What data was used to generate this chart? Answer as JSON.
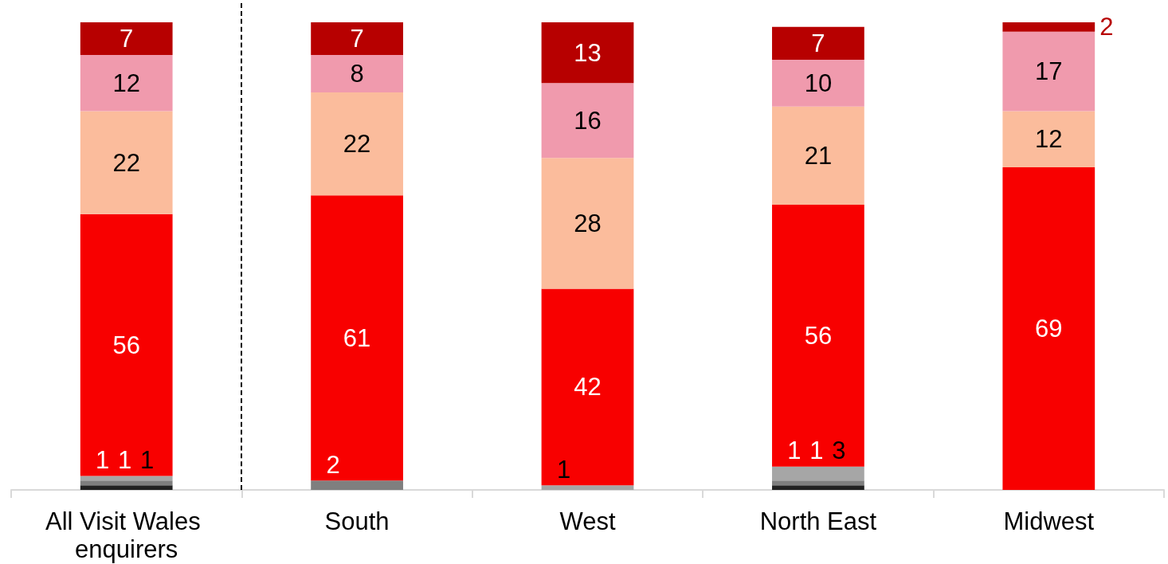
{
  "chart_data": {
    "type": "bar",
    "stacked": true,
    "data_labels": true,
    "tick_labels": "x",
    "ylim": [
      0,
      100
    ],
    "categories": [
      "All Visit Wales enquirers",
      "South",
      "West",
      "North East",
      "Midwest"
    ],
    "series": [
      {
        "color": "#222222",
        "values": [
          1,
          null,
          null,
          1,
          null
        ]
      },
      {
        "color": "#7f7f7f",
        "values": [
          1,
          2,
          null,
          1,
          null
        ]
      },
      {
        "color": "#a6a6a6",
        "values": [
          1,
          null,
          1,
          3,
          null
        ]
      },
      {
        "color": "#f80000",
        "values": [
          56,
          61,
          42,
          56,
          69
        ]
      },
      {
        "color": "#fbbc9c",
        "values": [
          22,
          22,
          28,
          21,
          12
        ]
      },
      {
        "color": "#f09aad",
        "values": [
          12,
          8,
          16,
          10,
          17
        ]
      },
      {
        "color": "#b70000",
        "values": [
          7,
          7,
          13,
          7,
          2
        ]
      }
    ]
  }
}
